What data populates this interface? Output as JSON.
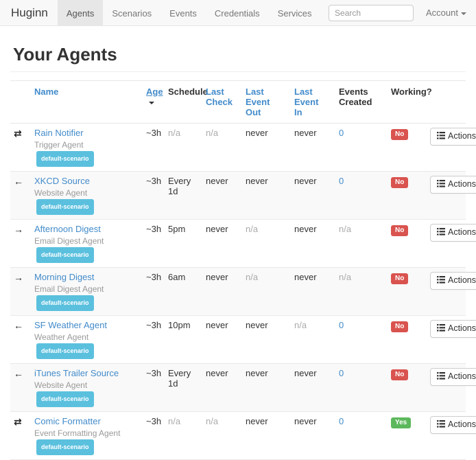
{
  "colors": {
    "link": "#428bca",
    "info": "#5bc0de",
    "danger": "#d9534f",
    "success": "#5cb85c",
    "navbar_bg": "#f8f8f8",
    "active_tab_bg": "#e7e7e7",
    "stripe": "#f9f9f9"
  },
  "navbar": {
    "brand": "Huginn",
    "items": [
      {
        "label": "Agents",
        "active": true
      },
      {
        "label": "Scenarios",
        "active": false
      },
      {
        "label": "Events",
        "active": false
      },
      {
        "label": "Credentials",
        "active": false
      },
      {
        "label": "Services",
        "active": false
      }
    ],
    "search_placeholder": "Search",
    "account_label": "Account"
  },
  "page": {
    "title": "Your Agents"
  },
  "table": {
    "headers": [
      {
        "label": "",
        "name": "icon",
        "sortable": false
      },
      {
        "label": "Name",
        "name": "name",
        "sortable": true
      },
      {
        "label": "Age",
        "name": "age",
        "sortable": true,
        "sorted": "desc"
      },
      {
        "label": "Schedule",
        "name": "schedule",
        "sortable": false
      },
      {
        "label": "Last Check",
        "name": "last-check",
        "sortable": true
      },
      {
        "label": "Last Event Out",
        "name": "last-event-out",
        "sortable": true
      },
      {
        "label": "Last Event In",
        "name": "last-event-in",
        "sortable": true
      },
      {
        "label": "Events Created",
        "name": "events-created",
        "sortable": false
      },
      {
        "label": "Working?",
        "name": "working",
        "sortable": false
      },
      {
        "label": "",
        "name": "actions",
        "sortable": false
      }
    ],
    "actions_label": "Actions",
    "icon_glyphs": {
      "transfer": "⇄",
      "arrow-left": "←",
      "arrow-right": "→"
    },
    "rows": [
      {
        "icon": "transfer",
        "name": "Rain Notifier",
        "type": "Trigger Agent",
        "scenario": "default-scenario",
        "age": "~3h",
        "schedule": "n/a",
        "last_check": "n/a",
        "last_event_out": "never",
        "last_event_in": "never",
        "events_created": "0",
        "working": "No"
      },
      {
        "icon": "arrow-left",
        "name": "XKCD Source",
        "type": "Website Agent",
        "scenario": "default-scenario",
        "age": "~3h",
        "schedule": "Every 1d",
        "last_check": "never",
        "last_event_out": "never",
        "last_event_in": "never",
        "events_created": "0",
        "working": "No"
      },
      {
        "icon": "arrow-right",
        "name": "Afternoon Digest",
        "type": "Email Digest Agent",
        "scenario": "default-scenario",
        "age": "~3h",
        "schedule": "5pm",
        "last_check": "never",
        "last_event_out": "n/a",
        "last_event_in": "never",
        "events_created": "n/a",
        "working": "No"
      },
      {
        "icon": "arrow-right",
        "name": "Morning Digest",
        "type": "Email Digest Agent",
        "scenario": "default-scenario",
        "age": "~3h",
        "schedule": "6am",
        "last_check": "never",
        "last_event_out": "n/a",
        "last_event_in": "never",
        "events_created": "n/a",
        "working": "No"
      },
      {
        "icon": "arrow-left",
        "name": "SF Weather Agent",
        "type": "Weather Agent",
        "scenario": "default-scenario",
        "age": "~3h",
        "schedule": "10pm",
        "last_check": "never",
        "last_event_out": "never",
        "last_event_in": "n/a",
        "events_created": "0",
        "working": "No"
      },
      {
        "icon": "arrow-left",
        "name": "iTunes Trailer Source",
        "type": "Website Agent",
        "scenario": "default-scenario",
        "age": "~3h",
        "schedule": "Every 1d",
        "last_check": "never",
        "last_event_out": "never",
        "last_event_in": "never",
        "events_created": "0",
        "working": "No"
      },
      {
        "icon": "transfer",
        "name": "Comic Formatter",
        "type": "Event Formatting Agent",
        "scenario": "default-scenario",
        "age": "~3h",
        "schedule": "n/a",
        "last_check": "n/a",
        "last_event_out": "never",
        "last_event_in": "never",
        "events_created": "0",
        "working": "Yes"
      }
    ]
  }
}
